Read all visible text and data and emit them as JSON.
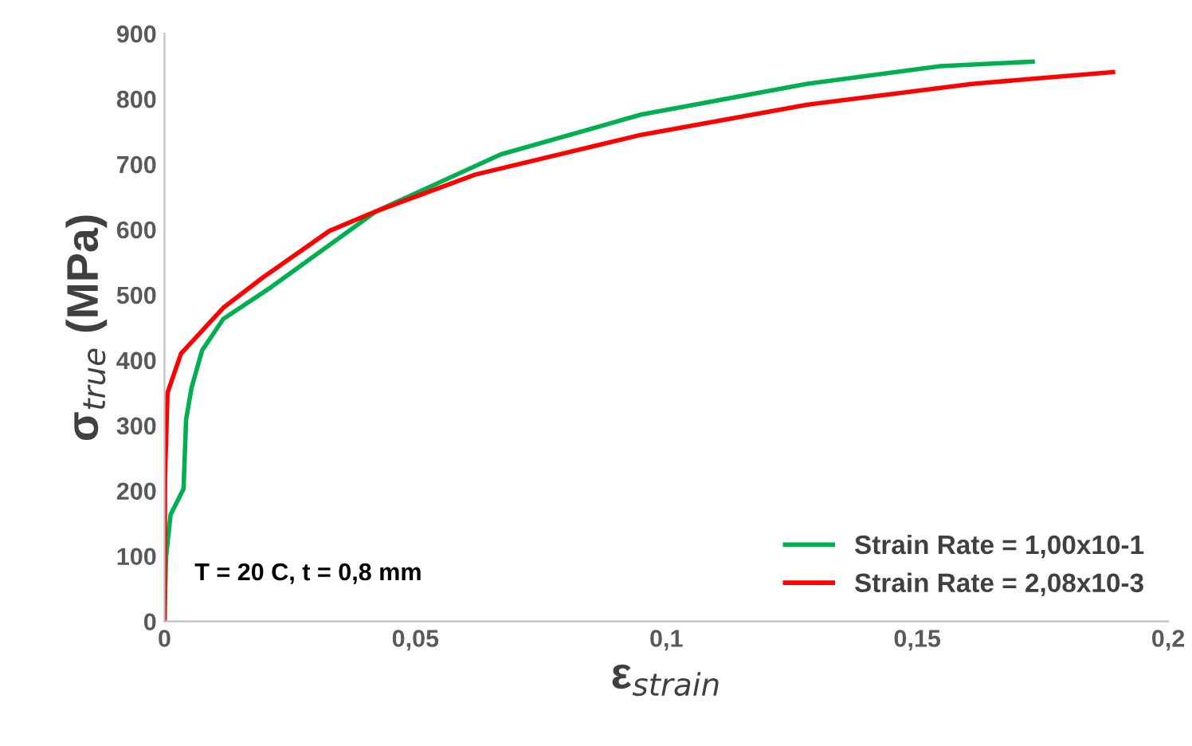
{
  "chart_data": {
    "type": "line",
    "xlabel": "ε$_{strain}$",
    "ylabel": "σ$_{true}$ (MPa)",
    "annotations": [
      "T = 20 C, t = 0,8 mm"
    ],
    "series": [
      {
        "name": "Strain Rate = 1,00x10-1",
        "color": "#00b050",
        "x": [
          0,
          0.0003,
          0.0012,
          0.0038,
          0.0043,
          0.0054,
          0.0075,
          0.0117,
          0.0213,
          0.0422,
          0.067,
          0.095,
          0.128,
          0.1546,
          0.173
        ],
        "values": [
          0,
          98,
          163,
          203,
          309,
          358,
          415,
          463,
          512,
          628,
          715,
          776,
          823,
          850,
          857
        ]
      },
      {
        "name": "Strain Rate = 2,08x10-3",
        "color": "#ff0000",
        "x": [
          0,
          0.0001,
          0.0006,
          0.0033,
          0.0117,
          0.0197,
          0.0329,
          0.0422,
          0.0619,
          0.095,
          0.128,
          0.161,
          0.189
        ],
        "values": [
          0,
          219,
          350,
          410,
          480,
          527,
          598,
          628,
          684,
          745,
          791,
          823,
          841
        ]
      }
    ],
    "xlim": [
      0,
      0.2
    ],
    "xticks": [
      0,
      {
        "value": 0.05,
        "label": "0,05"
      },
      {
        "value": 0.1,
        "label": "0,1"
      },
      {
        "value": 0.15,
        "label": "0,15"
      },
      {
        "value": 0.2,
        "label": "0,2"
      }
    ],
    "ylim": [
      0,
      900
    ],
    "yticks": [
      0,
      100,
      200,
      300,
      400,
      500,
      600,
      700,
      800,
      900
    ],
    "legend": "bottom right",
    "grid": false,
    "marker": "none",
    "line_style": "solid"
  }
}
